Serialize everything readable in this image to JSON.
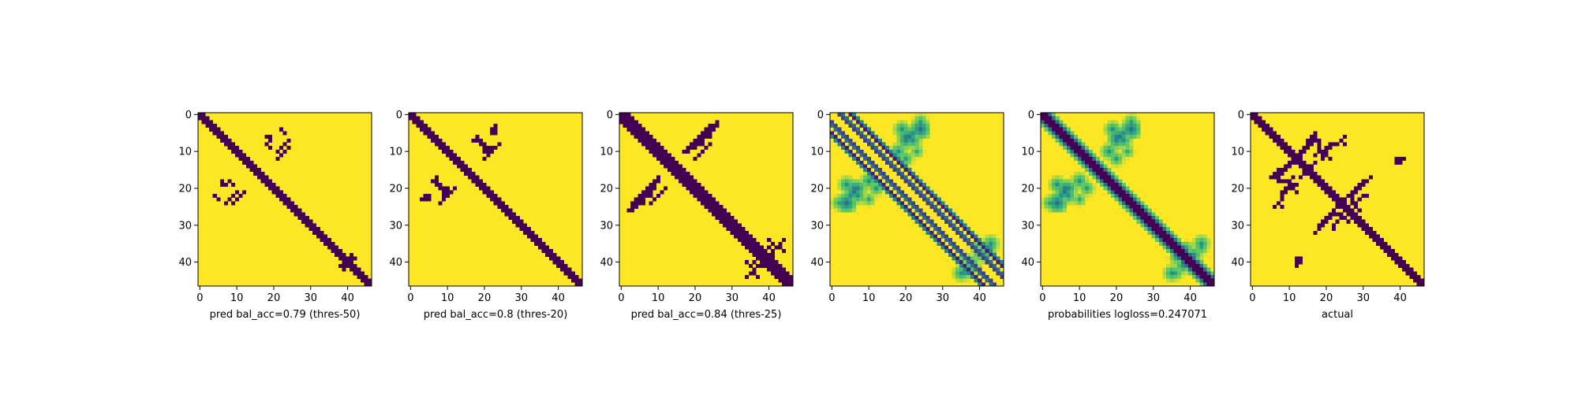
{
  "chart_data": [
    {
      "type": "heatmap",
      "xlabel": "pred bal_acc=0.79 (thres-50)",
      "n": 47,
      "xticks": [
        0,
        10,
        20,
        30,
        40
      ],
      "yticks": [
        0,
        10,
        20,
        30,
        40
      ],
      "colormap": "viridis-binary",
      "band": {
        "half_width": 1
      },
      "blobs": [
        {
          "r": 6,
          "c": 18
        },
        {
          "r": 6,
          "c": 19
        },
        {
          "r": 7,
          "c": 19
        },
        {
          "r": 5,
          "c": 23
        },
        {
          "r": 11,
          "c": 22
        },
        {
          "r": 10,
          "c": 23
        },
        {
          "r": 9,
          "c": 24
        },
        {
          "r": 12,
          "c": 21
        },
        {
          "r": 18,
          "c": 6
        },
        {
          "r": 19,
          "c": 7
        },
        {
          "r": 18,
          "c": 8
        },
        {
          "r": 19,
          "c": 9
        },
        {
          "r": 21,
          "c": 10
        },
        {
          "r": 22,
          "c": 4
        },
        {
          "r": 22,
          "c": 9
        },
        {
          "r": 23,
          "c": 8
        },
        {
          "r": 24,
          "c": 7
        },
        {
          "r": 41,
          "c": 38
        },
        {
          "r": 42,
          "c": 39
        },
        {
          "r": 41,
          "c": 39
        }
      ]
    },
    {
      "type": "heatmap",
      "xlabel": "pred bal_acc=0.8 (thres-20)",
      "n": 47,
      "xticks": [
        0,
        10,
        20,
        30,
        40
      ],
      "yticks": [
        0,
        10,
        20,
        30,
        40
      ],
      "colormap": "viridis-binary",
      "band": {
        "half_width": 1.6
      },
      "blobs": [
        {
          "r": 4,
          "c": 23
        },
        {
          "r": 5,
          "c": 22
        },
        {
          "r": 5,
          "c": 23
        },
        {
          "r": 6,
          "c": 18
        },
        {
          "r": 7,
          "c": 18
        },
        {
          "r": 7,
          "c": 19
        },
        {
          "r": 8,
          "c": 20
        },
        {
          "r": 9,
          "c": 21
        },
        {
          "r": 10,
          "c": 21
        },
        {
          "r": 10,
          "c": 22
        },
        {
          "r": 11,
          "c": 21
        },
        {
          "r": 12,
          "c": 20
        },
        {
          "r": 17,
          "c": 7
        },
        {
          "r": 18,
          "c": 6
        },
        {
          "r": 18,
          "c": 7
        },
        {
          "r": 19,
          "c": 8
        },
        {
          "r": 20,
          "c": 9
        },
        {
          "r": 20,
          "c": 10
        },
        {
          "r": 21,
          "c": 10
        },
        {
          "r": 21,
          "c": 11
        },
        {
          "r": 22,
          "c": 4
        },
        {
          "r": 22,
          "c": 5
        },
        {
          "r": 23,
          "c": 3
        },
        {
          "r": 22,
          "c": 9
        },
        {
          "r": 23,
          "c": 9
        },
        {
          "r": 24,
          "c": 8
        }
      ]
    },
    {
      "type": "heatmap",
      "xlabel": "pred bal_acc=0.84 (thres-25)",
      "n": 47,
      "xticks": [
        0,
        10,
        20,
        30,
        40
      ],
      "yticks": [
        0,
        10,
        20,
        30,
        40
      ],
      "colormap": "viridis-binary",
      "band": {
        "half_width": 2.1
      },
      "blobs": [
        {
          "r": 2,
          "c": 26
        },
        {
          "r": 3,
          "c": 25
        },
        {
          "r": 4,
          "c": 24
        },
        {
          "r": 5,
          "c": 23
        },
        {
          "r": 6,
          "c": 22
        },
        {
          "r": 7,
          "c": 21
        },
        {
          "r": 8,
          "c": 20
        },
        {
          "r": 9,
          "c": 19
        },
        {
          "r": 10,
          "c": 18
        },
        {
          "r": 3,
          "c": 26
        },
        {
          "r": 4,
          "c": 25
        },
        {
          "r": 5,
          "c": 24
        },
        {
          "r": 6,
          "c": 23
        },
        {
          "r": 7,
          "c": 22
        },
        {
          "r": 8,
          "c": 21
        },
        {
          "r": 9,
          "c": 20
        },
        {
          "r": 6,
          "c": 24
        },
        {
          "r": 8,
          "c": 22
        },
        {
          "r": 17,
          "c": 10
        },
        {
          "r": 18,
          "c": 9
        },
        {
          "r": 19,
          "c": 8
        },
        {
          "r": 20,
          "c": 7
        },
        {
          "r": 21,
          "c": 6
        },
        {
          "r": 22,
          "c": 5
        },
        {
          "r": 23,
          "c": 4
        },
        {
          "r": 24,
          "c": 3
        },
        {
          "r": 18,
          "c": 10
        },
        {
          "r": 19,
          "c": 9
        },
        {
          "r": 20,
          "c": 8
        },
        {
          "r": 21,
          "c": 7
        },
        {
          "r": 22,
          "c": 6
        },
        {
          "r": 23,
          "c": 5
        },
        {
          "r": 24,
          "c": 4
        },
        {
          "r": 20,
          "c": 12
        },
        {
          "r": 21,
          "c": 11
        },
        {
          "r": 22,
          "c": 10
        },
        {
          "r": 23,
          "c": 9
        },
        {
          "r": 24,
          "c": 8
        },
        {
          "r": 17,
          "c": 15
        },
        {
          "r": 18,
          "c": 16
        },
        {
          "r": 16,
          "c": 17
        },
        {
          "r": 34,
          "c": 40
        },
        {
          "r": 35,
          "c": 43
        },
        {
          "r": 36,
          "c": 43
        },
        {
          "r": 37,
          "c": 44
        },
        {
          "r": 39,
          "c": 37
        },
        {
          "r": 40,
          "c": 36
        },
        {
          "r": 41,
          "c": 35
        },
        {
          "r": 42,
          "c": 36
        },
        {
          "r": 43,
          "c": 35
        },
        {
          "r": 44,
          "c": 34
        },
        {
          "r": 40,
          "c": 38
        },
        {
          "r": 41,
          "c": 38
        },
        {
          "r": 38,
          "c": 40
        },
        {
          "r": 37,
          "c": 41
        }
      ]
    },
    {
      "type": "heatmap",
      "xlabel": "",
      "n": 47,
      "xticks": [
        0,
        10,
        20,
        30,
        40
      ],
      "yticks": [
        0,
        10,
        20,
        30,
        40
      ],
      "colormap": "viridis",
      "diagonal": false,
      "lines": [
        {
          "k": 2,
          "value": 0.2
        },
        {
          "k": 3,
          "value": 0.35
        },
        {
          "k": 5,
          "value": 0.1
        },
        {
          "k": 6,
          "value": 0.45
        }
      ],
      "arcs": [
        {
          "r": 5,
          "c": 22,
          "value": 0.5
        },
        {
          "r": 6,
          "c": 21,
          "value": 0.4
        },
        {
          "r": 7,
          "c": 20,
          "value": 0.45
        },
        {
          "r": 4,
          "c": 24,
          "value": 0.35
        },
        {
          "r": 10,
          "c": 18,
          "value": 0.55
        },
        {
          "r": 12,
          "c": 20,
          "value": 0.55
        },
        {
          "r": 20,
          "c": 6,
          "value": 0.45
        },
        {
          "r": 19,
          "c": 4,
          "value": 0.5
        },
        {
          "r": 22,
          "c": 7,
          "value": 0.5
        },
        {
          "r": 24,
          "c": 2,
          "value": 0.55
        },
        {
          "r": 18,
          "c": 10,
          "value": 0.5
        },
        {
          "r": 23,
          "c": 10,
          "value": 0.6
        },
        {
          "r": 38,
          "c": 41,
          "value": 0.5
        },
        {
          "r": 40,
          "c": 38,
          "value": 0.55
        },
        {
          "r": 43,
          "c": 36,
          "value": 0.55
        },
        {
          "r": 35,
          "c": 43,
          "value": 0.5
        },
        {
          "r": 36,
          "c": 39,
          "value": 0.6
        }
      ]
    },
    {
      "type": "heatmap",
      "xlabel": "probabilities logloss=0.247071",
      "n": 47,
      "xticks": [
        0,
        10,
        20,
        30,
        40
      ],
      "yticks": [
        0,
        10,
        20,
        30,
        40
      ],
      "colormap": "viridis",
      "diagonal": true,
      "arcs": [
        {
          "r": 5,
          "c": 22,
          "value": 0.5
        },
        {
          "r": 6,
          "c": 21,
          "value": 0.4
        },
        {
          "r": 7,
          "c": 20,
          "value": 0.45
        },
        {
          "r": 4,
          "c": 24,
          "value": 0.35
        },
        {
          "r": 10,
          "c": 18,
          "value": 0.55
        },
        {
          "r": 12,
          "c": 20,
          "value": 0.55
        },
        {
          "r": 20,
          "c": 6,
          "value": 0.45
        },
        {
          "r": 19,
          "c": 4,
          "value": 0.5
        },
        {
          "r": 22,
          "c": 7,
          "value": 0.5
        },
        {
          "r": 24,
          "c": 2,
          "value": 0.55
        },
        {
          "r": 18,
          "c": 10,
          "value": 0.5
        },
        {
          "r": 23,
          "c": 10,
          "value": 0.6
        },
        {
          "r": 38,
          "c": 41,
          "value": 0.5
        },
        {
          "r": 40,
          "c": 38,
          "value": 0.55
        },
        {
          "r": 43,
          "c": 36,
          "value": 0.55
        },
        {
          "r": 35,
          "c": 43,
          "value": 0.5
        },
        {
          "r": 36,
          "c": 39,
          "value": 0.6
        }
      ]
    },
    {
      "type": "heatmap",
      "xlabel": "actual",
      "n": 47,
      "xticks": [
        0,
        10,
        20,
        30,
        40
      ],
      "yticks": [
        0,
        10,
        20,
        30,
        40
      ],
      "colormap": "viridis-binary",
      "band": {
        "half_width": 1.3
      },
      "blobs": [
        {
          "r": 5,
          "c": 17
        },
        {
          "r": 6,
          "c": 16
        },
        {
          "r": 7,
          "c": 15
        },
        {
          "r": 8,
          "c": 15
        },
        {
          "r": 9,
          "c": 14
        },
        {
          "r": 10,
          "c": 13
        },
        {
          "r": 11,
          "c": 12
        },
        {
          "r": 12,
          "c": 12
        },
        {
          "r": 13,
          "c": 11
        },
        {
          "r": 14,
          "c": 10
        },
        {
          "r": 15,
          "c": 9
        },
        {
          "r": 16,
          "c": 8
        },
        {
          "r": 17,
          "c": 7
        },
        {
          "r": 18,
          "c": 7
        },
        {
          "r": 18,
          "c": 8
        },
        {
          "r": 17,
          "c": 6
        },
        {
          "r": 16,
          "c": 7
        },
        {
          "r": 14,
          "c": 9
        },
        {
          "r": 13,
          "c": 10
        },
        {
          "r": 8,
          "c": 22
        },
        {
          "r": 9,
          "c": 21
        },
        {
          "r": 10,
          "c": 20
        },
        {
          "r": 11,
          "c": 19
        },
        {
          "r": 12,
          "c": 19
        },
        {
          "r": 7,
          "c": 24
        },
        {
          "r": 6,
          "c": 25
        },
        {
          "r": 11,
          "c": 17
        },
        {
          "r": 10,
          "c": 18
        },
        {
          "r": 12,
          "c": 39
        },
        {
          "r": 13,
          "c": 39
        },
        {
          "r": 18,
          "c": 9
        },
        {
          "r": 19,
          "c": 10
        },
        {
          "r": 20,
          "c": 11
        },
        {
          "r": 21,
          "c": 12
        },
        {
          "r": 19,
          "c": 11
        },
        {
          "r": 20,
          "c": 9
        },
        {
          "r": 21,
          "c": 8
        },
        {
          "r": 22,
          "c": 8
        },
        {
          "r": 23,
          "c": 8
        },
        {
          "r": 24,
          "c": 7
        },
        {
          "r": 25,
          "c": 8
        },
        {
          "r": 17,
          "c": 13
        },
        {
          "r": 16,
          "c": 14
        },
        {
          "r": 17,
          "c": 32
        },
        {
          "r": 18,
          "c": 31
        },
        {
          "r": 19,
          "c": 30
        },
        {
          "r": 20,
          "c": 29
        },
        {
          "r": 21,
          "c": 28
        },
        {
          "r": 22,
          "c": 27
        },
        {
          "r": 18,
          "c": 30
        },
        {
          "r": 19,
          "c": 29
        },
        {
          "r": 20,
          "c": 28
        },
        {
          "r": 21,
          "c": 27
        },
        {
          "r": 22,
          "c": 26
        },
        {
          "r": 23,
          "c": 25
        },
        {
          "r": 23,
          "c": 27
        },
        {
          "r": 24,
          "c": 27
        },
        {
          "r": 25,
          "c": 28
        },
        {
          "r": 26,
          "c": 29
        },
        {
          "r": 27,
          "c": 27
        },
        {
          "r": 28,
          "c": 24
        },
        {
          "r": 29,
          "c": 23
        },
        {
          "r": 30,
          "c": 22
        },
        {
          "r": 31,
          "c": 22
        },
        {
          "r": 26,
          "c": 22
        },
        {
          "r": 27,
          "c": 21
        },
        {
          "r": 40,
          "c": 12
        },
        {
          "r": 40,
          "c": 13
        },
        {
          "r": 41,
          "c": 12
        }
      ]
    }
  ]
}
